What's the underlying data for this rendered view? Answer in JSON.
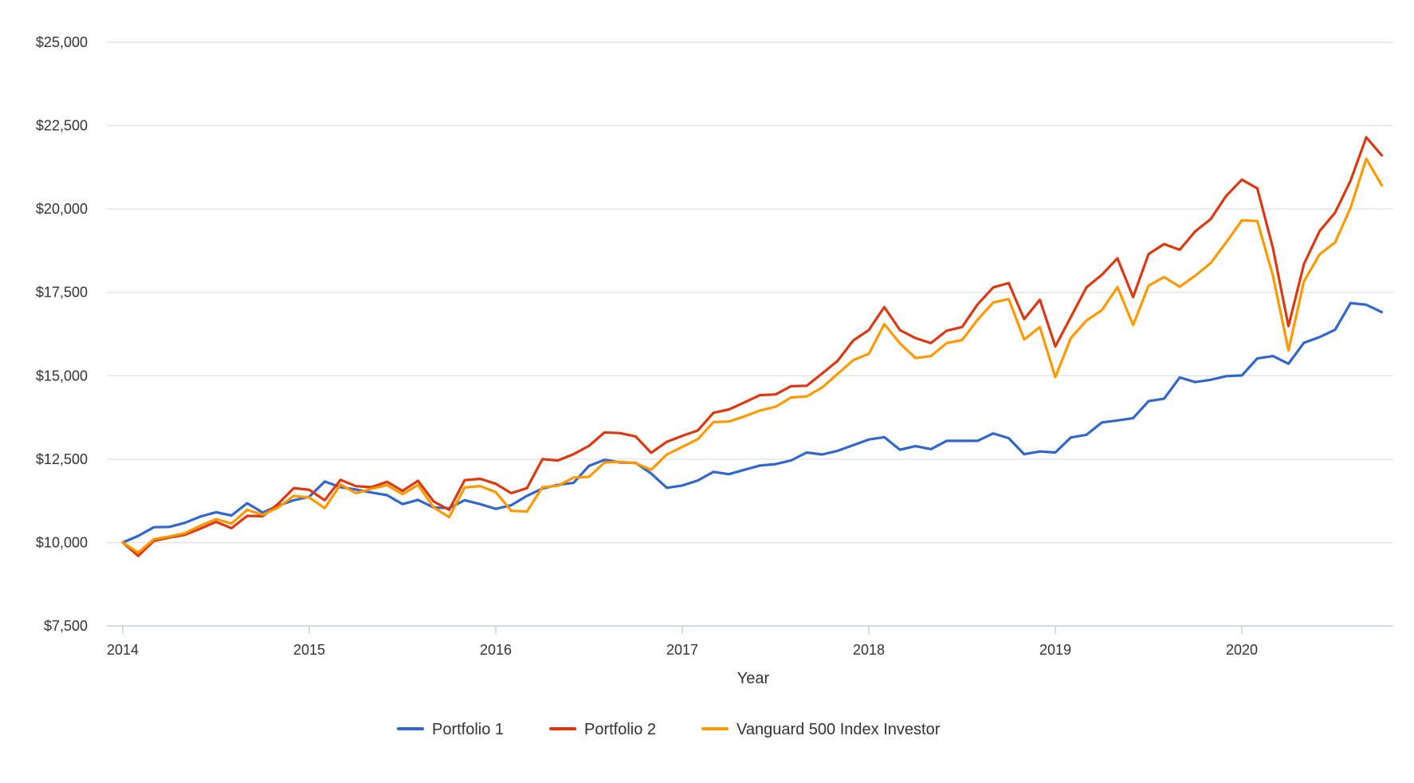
{
  "chart_data": {
    "type": "line",
    "title": "",
    "xlabel": "Year",
    "ylabel": "",
    "x": [
      2014.0,
      2014.083,
      2014.167,
      2014.25,
      2014.333,
      2014.417,
      2014.5,
      2014.583,
      2014.667,
      2014.75,
      2014.833,
      2014.917,
      2015.0,
      2015.083,
      2015.167,
      2015.25,
      2015.333,
      2015.417,
      2015.5,
      2015.583,
      2015.667,
      2015.75,
      2015.833,
      2015.917,
      2016.0,
      2016.083,
      2016.167,
      2016.25,
      2016.333,
      2016.417,
      2016.5,
      2016.583,
      2016.667,
      2016.75,
      2016.833,
      2016.917,
      2017.0,
      2017.083,
      2017.167,
      2017.25,
      2017.333,
      2017.417,
      2017.5,
      2017.583,
      2017.667,
      2017.75,
      2017.833,
      2017.917,
      2018.0,
      2018.083,
      2018.167,
      2018.25,
      2018.333,
      2018.417,
      2018.5,
      2018.583,
      2018.667,
      2018.75,
      2018.833,
      2018.917,
      2019.0,
      2019.083,
      2019.167,
      2019.25,
      2019.333,
      2019.417,
      2019.5,
      2019.583,
      2019.667,
      2019.75,
      2019.833,
      2019.917,
      2020.0,
      2020.083,
      2020.167,
      2020.25,
      2020.333,
      2020.417,
      2020.5,
      2020.583,
      2020.667,
      2020.75
    ],
    "series": [
      {
        "name": "Portfolio 1",
        "color": "#3366cc",
        "values": [
          10000,
          10200,
          10460,
          10470,
          10590,
          10780,
          10910,
          10810,
          11180,
          10900,
          11100,
          11270,
          11370,
          11830,
          11660,
          11590,
          11500,
          11420,
          11150,
          11280,
          11050,
          11030,
          11270,
          11150,
          11010,
          11120,
          11400,
          11620,
          11730,
          11790,
          12300,
          12480,
          12400,
          12390,
          12070,
          11640,
          11710,
          11860,
          12120,
          12050,
          12180,
          12310,
          12350,
          12460,
          12700,
          12640,
          12750,
          12920,
          13090,
          13160,
          12780,
          12890,
          12800,
          13050,
          13050,
          13050,
          13270,
          13130,
          12650,
          12730,
          12700,
          13150,
          13230,
          13600,
          13660,
          13730,
          14240,
          14310,
          14950,
          14810,
          14880,
          14990,
          15010,
          15520,
          15590,
          15360,
          15990,
          16160,
          16380,
          17180,
          17130,
          16910
        ]
      },
      {
        "name": "Portfolio 2",
        "color": "#dc3912",
        "values": [
          10000,
          9600,
          10050,
          10150,
          10230,
          10420,
          10620,
          10430,
          10800,
          10790,
          11160,
          11630,
          11580,
          11270,
          11880,
          11690,
          11660,
          11820,
          11550,
          11850,
          11230,
          10980,
          11870,
          11910,
          11760,
          11480,
          11630,
          12500,
          12460,
          12650,
          12900,
          13300,
          13280,
          13180,
          12690,
          13020,
          13200,
          13360,
          13890,
          13990,
          14200,
          14420,
          14440,
          14690,
          14700,
          15070,
          15450,
          16060,
          16370,
          17060,
          16370,
          16130,
          15980,
          16350,
          16460,
          17140,
          17650,
          17780,
          16700,
          17280,
          15880,
          16760,
          17650,
          18030,
          18520,
          17360,
          18650,
          18950,
          18780,
          19330,
          19700,
          20400,
          20880,
          20620,
          18820,
          16490,
          18350,
          19340,
          19890,
          20850,
          22150,
          21610
        ]
      },
      {
        "name": "Vanguard 500 Index Investor",
        "color": "#ff9900",
        "values": [
          10000,
          9700,
          10100,
          10180,
          10280,
          10510,
          10700,
          10570,
          10980,
          10830,
          11050,
          11400,
          11350,
          11030,
          11740,
          11480,
          11610,
          11720,
          11450,
          11730,
          11050,
          10760,
          11650,
          11690,
          11510,
          10950,
          10930,
          11660,
          11700,
          11950,
          11970,
          12400,
          12420,
          12380,
          12180,
          12640,
          12870,
          13100,
          13610,
          13630,
          13780,
          13960,
          14070,
          14350,
          14380,
          14650,
          15060,
          15470,
          15660,
          16550,
          15970,
          15530,
          15590,
          15980,
          16070,
          16680,
          17200,
          17300,
          16090,
          16460,
          14960,
          16130,
          16660,
          16970,
          17660,
          16520,
          17700,
          17960,
          17670,
          18000,
          18380,
          19010,
          19660,
          19640,
          17990,
          15760,
          17830,
          18640,
          19000,
          20040,
          21510,
          20710
        ]
      }
    ],
    "ylim": [
      7500,
      25000
    ],
    "yticks": [
      "$7,500",
      "$10,000",
      "$12,500",
      "$15,000",
      "$17,500",
      "$20,000",
      "$22,500",
      "$25,000"
    ],
    "ytick_values": [
      7500,
      10000,
      12500,
      15000,
      17500,
      20000,
      22500,
      25000
    ],
    "xlim": [
      2014.0,
      2020.75
    ],
    "xticks": [
      "2014",
      "2015",
      "2016",
      "2017",
      "2018",
      "2019",
      "2020"
    ],
    "xtick_values": [
      2014,
      2015,
      2016,
      2017,
      2018,
      2019,
      2020
    ],
    "grid": true,
    "legend_position": "bottom"
  }
}
